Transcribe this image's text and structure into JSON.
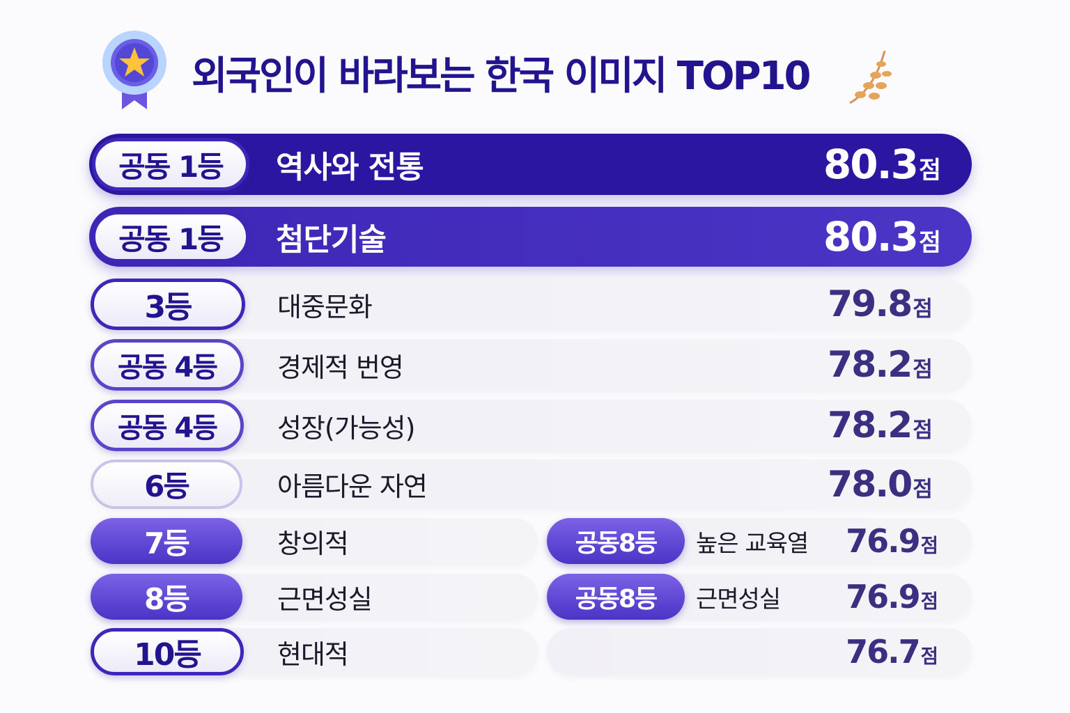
{
  "title": "외국인이 바라보는 한국 이미지 TOP10",
  "unit": "점",
  "colors": {
    "primary": "#22148f",
    "row1": "#2a16a0",
    "row2": "#4530c0",
    "badge_purple": "#5a42d4"
  },
  "rows": [
    {
      "rank": "공동 1등",
      "label": "역사와 전통",
      "score": "80.3"
    },
    {
      "rank": "공동 1등",
      "label": "첨단기술",
      "score": "80.3"
    },
    {
      "rank": "3등",
      "label": "대중문화",
      "score": "79.8"
    },
    {
      "rank": "공동 4등",
      "label": "경제적 번영",
      "score": "78.2"
    },
    {
      "rank": "공동 4등",
      "label": "성장(가능성)",
      "score": "78.2"
    },
    {
      "rank": "6등",
      "label": "아름다운 자연",
      "score": "78.0"
    }
  ],
  "split_rows": [
    {
      "left": {
        "rank": "7등",
        "label": "창의적"
      },
      "right": {
        "rank": "공동8등",
        "label": "높은 교육열",
        "score": "76.9"
      }
    },
    {
      "left": {
        "rank": "8등",
        "label": "근면성실"
      },
      "right": {
        "rank": "공동8등",
        "label": "근면성실",
        "score": "76.9"
      }
    },
    {
      "left": {
        "rank": "10등",
        "label": "현대적"
      },
      "right": {
        "score": "76.7"
      }
    }
  ]
}
